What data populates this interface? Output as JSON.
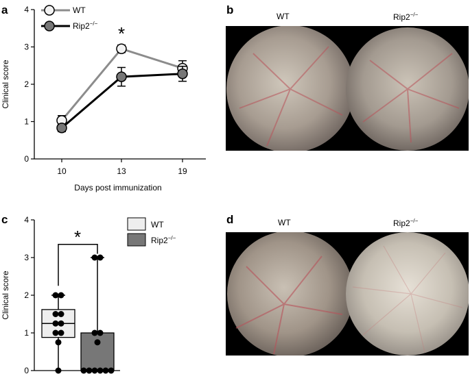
{
  "panels": {
    "a": {
      "letter": "a",
      "legend": [
        {
          "label": "WT",
          "fill": "#f2f2f2",
          "line": "#8c8c8c"
        },
        {
          "label": "Rip2",
          "sup": "−/−",
          "fill": "#777777",
          "line": "#000000"
        }
      ],
      "significance": "*"
    },
    "b": {
      "letter": "b",
      "labels": [
        {
          "text": "WT"
        },
        {
          "text": "Rip2",
          "sup": "−/−"
        }
      ]
    },
    "c": {
      "letter": "c",
      "legend": [
        {
          "label": "WT",
          "fill": "#eeeeee"
        },
        {
          "label": "Rip2",
          "sup": "−/−",
          "fill": "#777777"
        }
      ],
      "significance": "*"
    },
    "d": {
      "letter": "d",
      "labels": [
        {
          "text": "WT"
        },
        {
          "text": "Rip2",
          "sup": "−/−"
        }
      ]
    }
  },
  "chart_data": [
    {
      "type": "line",
      "x": [
        "10",
        "13",
        "19"
      ],
      "xlabel": "Days post immunization",
      "ylabel": "Clinical score",
      "ylim": [
        0,
        4
      ],
      "yticks": [
        "0",
        "1",
        "2",
        "3",
        "4"
      ],
      "series": [
        {
          "name": "WT",
          "values": [
            1.03,
            2.95,
            2.43
          ],
          "err": [
            0.13,
            0.1,
            0.2
          ],
          "color": "#8c8c8c"
        },
        {
          "name": "Rip2−/−",
          "values": [
            0.83,
            2.2,
            2.28
          ],
          "err": [
            0.1,
            0.25,
            0.2
          ],
          "color": "#000000"
        }
      ]
    },
    {
      "type": "box",
      "categories": [
        "WT",
        "Rip2−/−"
      ],
      "ylabel": "Clinical score",
      "ylim": [
        0,
        4
      ],
      "yticks": [
        "0",
        "1",
        "2",
        "3",
        "4"
      ],
      "series": [
        {
          "name": "WT",
          "min": 0,
          "q1": 0.88,
          "median": 1.25,
          "q3": 1.62,
          "max": 2,
          "points": [
            2,
            2,
            1.5,
            1.5,
            1.25,
            1.25,
            1,
            1,
            0.75,
            0
          ],
          "fill": "#eeeeee"
        },
        {
          "name": "Rip2−/−",
          "min": 0,
          "q1": 0,
          "median": 0,
          "q3": 1,
          "max": 3,
          "points": [
            3,
            3,
            1,
            1,
            0.75,
            0,
            0,
            0,
            0,
            0,
            0
          ],
          "fill": "#777777"
        }
      ]
    }
  ]
}
